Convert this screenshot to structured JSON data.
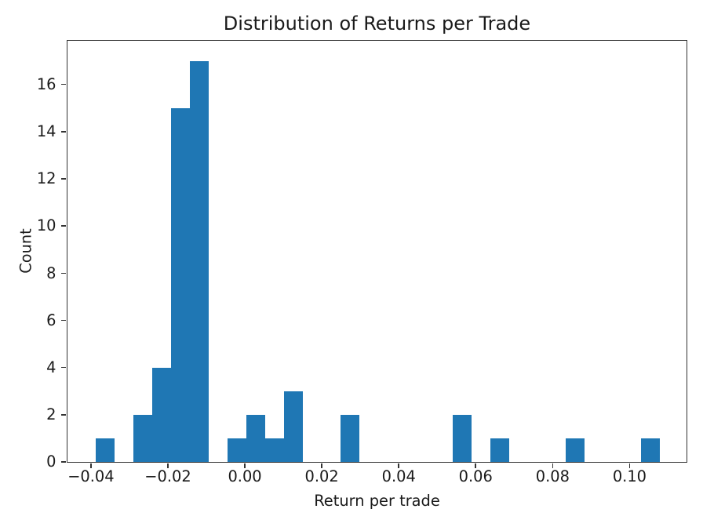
{
  "chart_data": {
    "type": "bar",
    "subtype": "histogram",
    "title": "Distribution of Returns per Trade",
    "xlabel": "Return per trade",
    "ylabel": "Count",
    "bar_color": "#1f77b4",
    "axis_color": "#333333",
    "text_color": "#1a1a1a",
    "background_color": "#ffffff",
    "grid": false,
    "legend": null,
    "n_bins": 30,
    "xlim": [
      -0.0461,
      0.1148
    ],
    "ylim": [
      0,
      17.85
    ],
    "bin_edges": [
      -0.0387,
      -0.033817,
      -0.028933,
      -0.02405,
      -0.019167,
      -0.014283,
      -0.0094,
      -0.004517,
      0.000367,
      0.00525,
      0.010133,
      0.015017,
      0.0199,
      0.024783,
      0.029667,
      0.03455,
      0.039433,
      0.044317,
      0.0492,
      0.054083,
      0.058967,
      0.06385,
      0.068733,
      0.073617,
      0.0785,
      0.083383,
      0.088267,
      0.09315,
      0.098033,
      0.102917,
      0.1078
    ],
    "counts": [
      1,
      0,
      2,
      4,
      15,
      17,
      0,
      1,
      2,
      1,
      3,
      0,
      0,
      2,
      0,
      0,
      0,
      0,
      0,
      2,
      0,
      1,
      0,
      0,
      0,
      1,
      0,
      0,
      0,
      1
    ],
    "xticks": [
      {
        "value": -0.04,
        "label": "−0.04"
      },
      {
        "value": -0.02,
        "label": "−0.02"
      },
      {
        "value": 0.0,
        "label": "0.00"
      },
      {
        "value": 0.02,
        "label": "0.02"
      },
      {
        "value": 0.04,
        "label": "0.04"
      },
      {
        "value": 0.06,
        "label": "0.06"
      },
      {
        "value": 0.08,
        "label": "0.08"
      },
      {
        "value": 0.1,
        "label": "0.10"
      }
    ],
    "yticks": [
      {
        "value": 0,
        "label": "0"
      },
      {
        "value": 2,
        "label": "2"
      },
      {
        "value": 4,
        "label": "4"
      },
      {
        "value": 6,
        "label": "6"
      },
      {
        "value": 8,
        "label": "8"
      },
      {
        "value": 10,
        "label": "10"
      },
      {
        "value": 12,
        "label": "12"
      },
      {
        "value": 14,
        "label": "14"
      },
      {
        "value": 16,
        "label": "16"
      }
    ]
  }
}
